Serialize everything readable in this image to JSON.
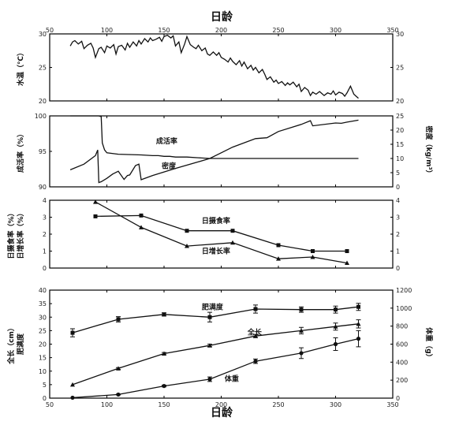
{
  "chart_data": {
    "type": "line",
    "title_top": "日龄",
    "title_bottom": "日龄",
    "x_range": [
      50,
      350
    ],
    "x_ticks": [
      50,
      100,
      150,
      200,
      250,
      300,
      350
    ],
    "panels": [
      {
        "id": "temp",
        "left_ylabel": "水温（℃）",
        "right_ylabel": "",
        "ylim": [
          20,
          30
        ],
        "yticks": [
          20,
          25,
          30
        ],
        "right_ylim": [
          20,
          30
        ],
        "right_yticks": [
          20,
          25,
          30
        ],
        "series": [
          {
            "axis": "left",
            "style": "line",
            "x": [
              68,
              70,
              72,
              75,
              78,
              80,
              83,
              86,
              88,
              90,
              93,
              95,
              98,
              100,
              103,
              106,
              108,
              110,
              113,
              116,
              118,
              120,
              123,
              126,
              128,
              130,
              133,
              136,
              138,
              140,
              143,
              146,
              148,
              150,
              153,
              156,
              158,
              160,
              163,
              165,
              168,
              170,
              173,
              176,
              178,
              180,
              183,
              186,
              188,
              190,
              193,
              196,
              198,
              200,
              203,
              206,
              208,
              210,
              213,
              216,
              218,
              220,
              223,
              226,
              228,
              230,
              233,
              236,
              238,
              240,
              243,
              246,
              248,
              250,
              253,
              256,
              258,
              260,
              263,
              266,
              268,
              270,
              273,
              276,
              278,
              280,
              283,
              286,
              288,
              290,
              293,
              296,
              298,
              300,
              303,
              306,
              308,
              310,
              313,
              316,
              318,
              320
            ],
            "y": [
              28.2,
              28.8,
              29.0,
              28.5,
              28.9,
              27.8,
              28.3,
              28.6,
              27.9,
              26.5,
              27.8,
              28.0,
              27.2,
              28.2,
              27.9,
              28.4,
              27.0,
              28.1,
              28.3,
              27.6,
              28.6,
              28.0,
              28.8,
              28.2,
              29.0,
              28.5,
              29.3,
              28.8,
              29.4,
              29.0,
              29.2,
              29.5,
              28.9,
              29.6,
              29.8,
              29.4,
              29.7,
              28.2,
              28.8,
              27.2,
              28.5,
              29.6,
              28.4,
              28.0,
              27.8,
              28.3,
              27.5,
              27.9,
              27.0,
              26.8,
              27.3,
              26.8,
              27.2,
              26.5,
              26.2,
              25.8,
              26.4,
              25.9,
              25.4,
              26.0,
              25.2,
              25.8,
              24.8,
              25.3,
              24.6,
              25.0,
              24.2,
              24.7,
              24.0,
              23.2,
              23.6,
              22.8,
              23.1,
              22.6,
              22.9,
              22.3,
              22.7,
              22.4,
              22.8,
              22.1,
              22.5,
              21.4,
              22.0,
              21.6,
              20.8,
              21.3,
              21.0,
              21.4,
              21.1,
              20.8,
              21.2,
              21.0,
              21.5,
              20.9,
              21.3,
              21.1,
              20.7,
              21.2,
              22.2,
              21.0,
              20.7,
              20.4
            ]
          }
        ]
      },
      {
        "id": "survival",
        "left_ylabel": "成活率（%）",
        "right_ylabel": "密度（kg/m³）",
        "ylim": [
          90,
          100
        ],
        "yticks": [
          90,
          95,
          100
        ],
        "right_ylim": [
          0,
          25
        ],
        "right_yticks": [
          0,
          5,
          10,
          15,
          20,
          25
        ],
        "annotations": [
          {
            "text": "成活率",
            "x": 143,
            "y": 96.1,
            "axis": "left"
          },
          {
            "text": "密度",
            "x": 148,
            "y": 6.5,
            "axis": "right"
          }
        ],
        "series": [
          {
            "name": "成活率",
            "axis": "left",
            "style": "line",
            "x": [
              68,
              85,
              93,
              95,
              96,
              98,
              100,
              110,
              130,
              140,
              145,
              150,
              155,
              160,
              170,
              180,
              190,
              320
            ],
            "y": [
              100,
              100,
              100,
              99.9,
              96.2,
              95.2,
              94.8,
              94.6,
              94.5,
              94.4,
              94.4,
              94.3,
              94.3,
              94.2,
              94.2,
              94.1,
              94.0,
              94.0
            ]
          },
          {
            "name": "密度",
            "axis": "right",
            "style": "line",
            "x": [
              68,
              80,
              90,
              92,
              93,
              95,
              100,
              105,
              110,
              115,
              118,
              120,
              125,
              128,
              130,
              132,
              140,
              160,
              180,
              190,
              200,
              210,
              230,
              240,
              250,
              270,
              278,
              280,
              300,
              305,
              310,
              320
            ],
            "y": [
              6,
              8,
              11,
              13,
              1.5,
              1.8,
              3,
              4.5,
              5.5,
              2.6,
              4,
              4.2,
              7.5,
              8,
              2.5,
              2.8,
              4,
              6.5,
              8.8,
              10,
              12,
              14,
              17,
              17.3,
              19.5,
              22,
              23.3,
              21.5,
              22.5,
              22.4,
              22.8,
              23.5
            ]
          }
        ]
      },
      {
        "id": "feeding",
        "left_ylabel": "日摄食率（%）",
        "left_ylabel2": "日增长率（%）",
        "right_ylabel": "",
        "ylim": [
          0,
          4
        ],
        "yticks": [
          0,
          1,
          2,
          3,
          4
        ],
        "right_ylim": [
          0,
          4
        ],
        "right_yticks": [
          0,
          1,
          2,
          3,
          4
        ],
        "annotations": [
          {
            "text": "日摄食率",
            "x": 183,
            "y": 2.65,
            "axis": "left"
          },
          {
            "text": "日增长率",
            "x": 183,
            "y": 0.85,
            "axis": "left"
          }
        ],
        "series": [
          {
            "name": "日摄食率",
            "axis": "left",
            "style": "line",
            "marker": "square",
            "x": [
              90,
              130,
              170,
              210,
              250,
              280,
              310
            ],
            "y": [
              3.05,
              3.1,
              2.2,
              2.2,
              1.35,
              1.0,
              1.0
            ]
          },
          {
            "name": "日增长率",
            "axis": "left",
            "style": "line",
            "marker": "triangle",
            "x": [
              90,
              130,
              170,
              210,
              250,
              280,
              310
            ],
            "y": [
              3.9,
              2.4,
              1.3,
              1.5,
              0.55,
              0.65,
              0.3
            ]
          }
        ]
      },
      {
        "id": "growth",
        "left_ylabel": "全长（cm）",
        "left_ylabel2": "肥满度",
        "right_ylabel": "体重（g）",
        "ylim": [
          0,
          40
        ],
        "yticks": [
          0,
          5,
          10,
          15,
          20,
          25,
          30,
          35,
          40
        ],
        "right_ylim": [
          0,
          1200
        ],
        "right_yticks": [
          0,
          200,
          400,
          600,
          800,
          1000,
          1200
        ],
        "annotations": [
          {
            "text": "肥满度",
            "x": 183,
            "y": 32.8,
            "axis": "left"
          },
          {
            "text": "全长",
            "x": 223,
            "y": 23.5,
            "axis": "left"
          },
          {
            "text": "体重",
            "x": 203,
            "y": 6.3,
            "axis": "left"
          }
        ],
        "series": [
          {
            "name": "肥满度",
            "axis": "left",
            "style": "line",
            "marker": "square",
            "x": [
              70,
              110,
              150,
              190,
              230,
              270,
              300,
              320
            ],
            "y": [
              24.2,
              29.2,
              31.0,
              30.0,
              33.0,
              32.8,
              32.8,
              33.8
            ],
            "err": [
              1.5,
              1.0,
              0.6,
              1.8,
              1.5,
              1.0,
              1.3,
              1.3
            ]
          },
          {
            "name": "全长",
            "axis": "left",
            "style": "line",
            "marker": "triangle",
            "x": [
              70,
              110,
              150,
              190,
              230,
              270,
              300,
              320
            ],
            "y": [
              5.0,
              11.0,
              16.5,
              19.5,
              23.0,
              25.0,
              26.5,
              27.5
            ],
            "err": [
              0,
              0.3,
              0.4,
              0.5,
              0.6,
              1.2,
              1.3,
              1.5
            ]
          },
          {
            "name": "体重",
            "axis": "right",
            "style": "line",
            "marker": "circle",
            "x": [
              70,
              110,
              150,
              190,
              230,
              270,
              300,
              320
            ],
            "y": [
              5,
              40,
              135,
              210,
              410,
              500,
              600,
              660
            ],
            "err": [
              0,
              5,
              10,
              25,
              25,
              60,
              70,
              90
            ]
          }
        ]
      }
    ]
  }
}
